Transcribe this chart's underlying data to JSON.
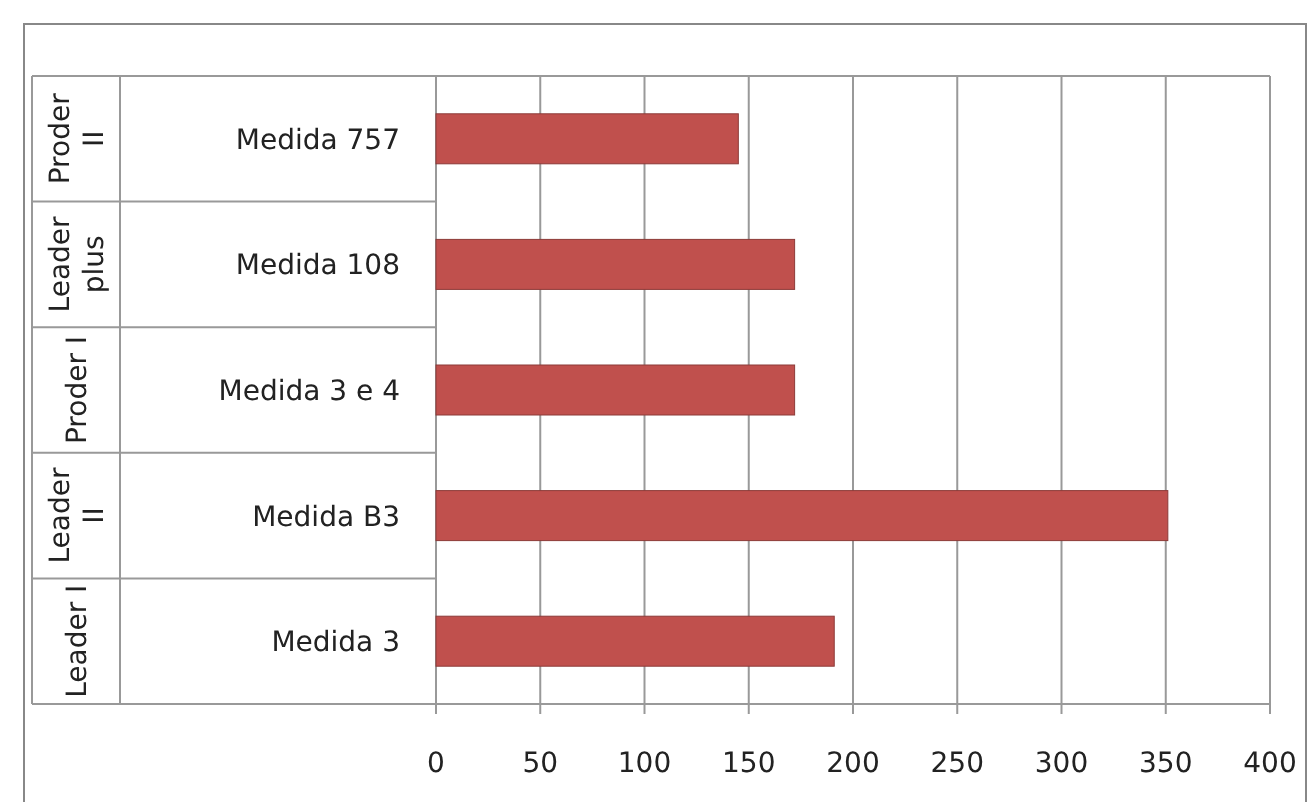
{
  "chart_data": {
    "type": "bar",
    "orientation": "horizontal",
    "categories": [
      "Medida 757",
      "Medida 108",
      "Medida 3 e 4",
      "Medida B3",
      "Medida 3"
    ],
    "values": [
      145,
      172,
      172,
      351,
      191
    ],
    "color": "#c0504d",
    "xlim": [
      0,
      400
    ],
    "xticks": [
      0,
      50,
      100,
      150,
      200,
      250,
      300,
      350,
      400
    ],
    "grid": "x",
    "annotations": [
      "Proder II",
      "Leader plus",
      "Proder I",
      "Leader II",
      "Leader I"
    ]
  }
}
